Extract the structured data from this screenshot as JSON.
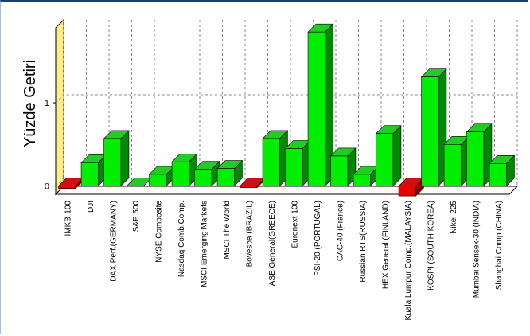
{
  "colors": {
    "positive_front": "#00ee00",
    "positive_side": "#008800",
    "positive_top": "#22cc22",
    "negative_front": "#ee0000",
    "negative_side": "#880000",
    "negative_top": "#cc1111",
    "wall": "#ffffff",
    "wall_edge": "#ffee88",
    "floor": "#ffffff",
    "grid": "#888888",
    "frame_top": "#1f3f74"
  },
  "chart_data": {
    "type": "bar",
    "title": "",
    "xlabel": "",
    "ylabel": "Yüzde Getiri",
    "ylim": [
      -0.1,
      1.9
    ],
    "yticks": [
      0,
      1
    ],
    "grid": true,
    "three_d": true,
    "categories": [
      "IMKB-100",
      "DJI",
      "DAX Perf.(GERMANY)",
      "S&P 500",
      "NYSE Composite",
      "Nasdaq Comb.Comp.",
      "MSCI Emerging Markets",
      "MSCI The World",
      "Bovespa (BRAZIL)",
      "ASE General(GREECE)",
      "Euronext 100",
      "PSI-20 (PORTUGAL)",
      "CAC-40 (France)",
      "Russian RTS(RUSSIA)",
      "HEX General (FINLAND)",
      "Kuala Lumpur Comp.(MALAYSIA)",
      "KOSPI (SOUTH KOREA)",
      "Nikei 225",
      "Mumbai Sensex-30 (INDIA)",
      "Shanghai Comp.(CHINA)"
    ],
    "values": [
      -0.03,
      0.28,
      0.57,
      0.0,
      0.14,
      0.29,
      0.2,
      0.21,
      -0.02,
      0.57,
      0.45,
      1.85,
      0.36,
      0.14,
      0.63,
      -0.12,
      1.31,
      0.5,
      0.65,
      0.27
    ]
  }
}
